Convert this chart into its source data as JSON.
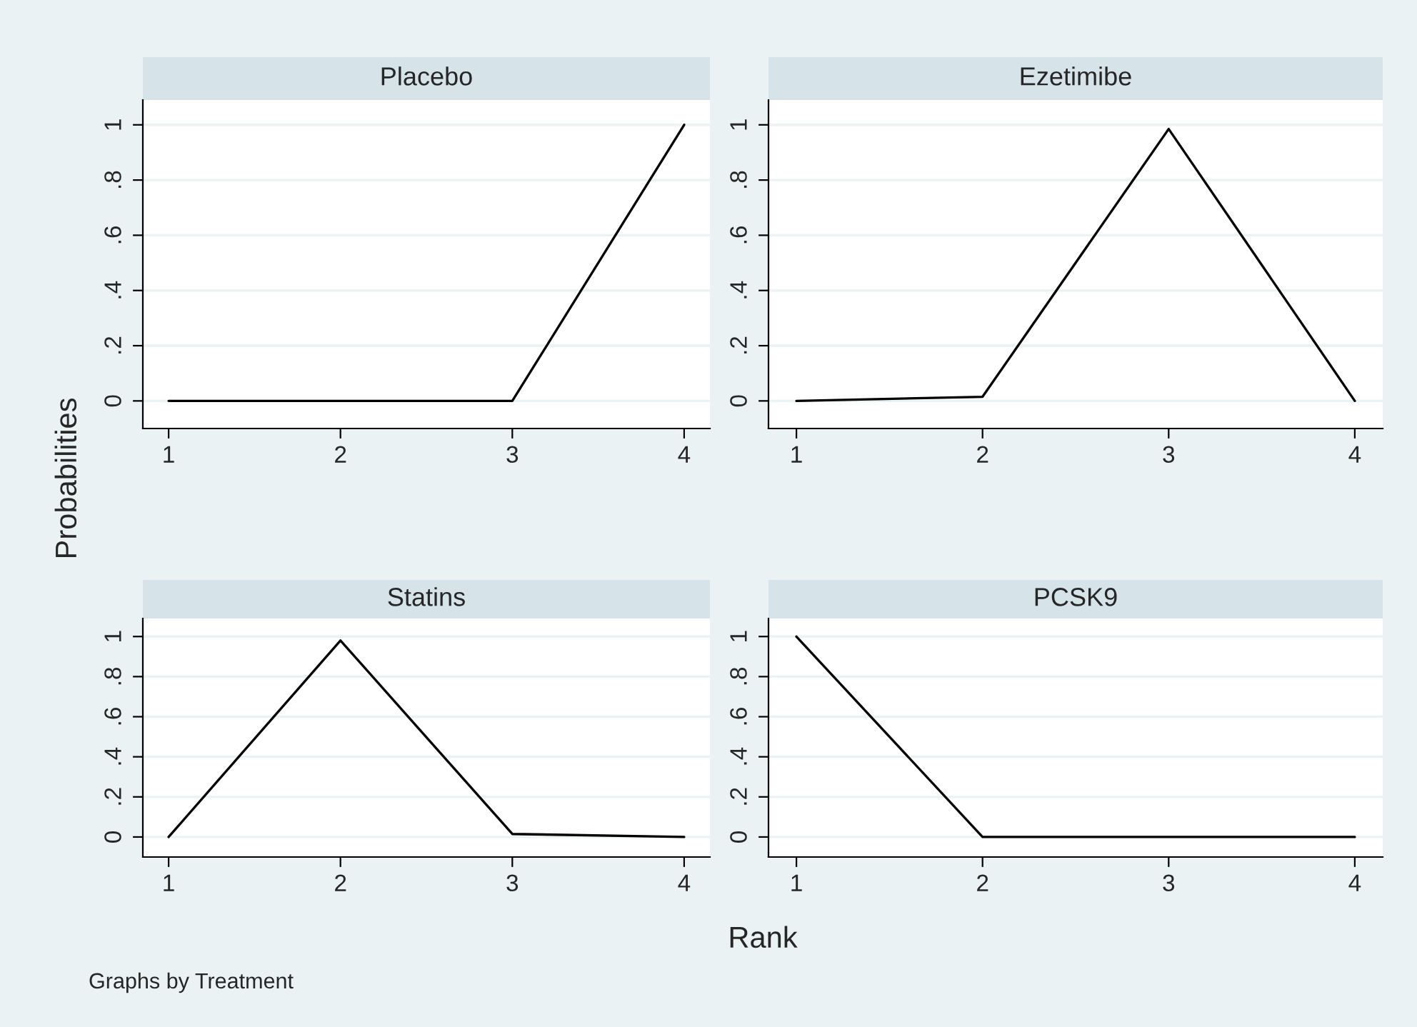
{
  "chart_data": [
    {
      "type": "line",
      "title": "Placebo",
      "x": [
        1,
        2,
        3,
        4
      ],
      "series": [
        {
          "color": "#000000",
          "values": [
            0,
            0,
            0,
            1
          ]
        }
      ],
      "xlim": [
        0.85,
        4.15
      ],
      "xticks": [
        1,
        2,
        3,
        4
      ],
      "ylim": [
        -0.1,
        1.09
      ],
      "yticks": [
        0,
        {
          "value": 0.2,
          "label": ".2"
        },
        {
          "value": 0.4,
          "label": ".4"
        },
        {
          "value": 0.6,
          "label": ".6"
        },
        {
          "value": 0.8,
          "label": ".8"
        },
        1
      ],
      "grid": "y",
      "ylabel": "Probabilities"
    },
    {
      "type": "line",
      "title": "Ezetimibe",
      "x": [
        1,
        2,
        3,
        4
      ],
      "series": [
        {
          "color": "#000000",
          "values": [
            0,
            0.015,
            0.985,
            0
          ]
        }
      ],
      "xlim": [
        0.85,
        4.15
      ],
      "xticks": [
        1,
        2,
        3,
        4
      ],
      "ylim": [
        -0.1,
        1.09
      ],
      "yticks": [
        0,
        {
          "value": 0.2,
          "label": ".2"
        },
        {
          "value": 0.4,
          "label": ".4"
        },
        {
          "value": 0.6,
          "label": ".6"
        },
        {
          "value": 0.8,
          "label": ".8"
        },
        1
      ],
      "grid": "y"
    },
    {
      "type": "line",
      "title": "Statins",
      "x": [
        1,
        2,
        3,
        4
      ],
      "series": [
        {
          "color": "#000000",
          "values": [
            0,
            0.98,
            0.015,
            0
          ]
        }
      ],
      "xlim": [
        0.85,
        4.15
      ],
      "xticks": [
        1,
        2,
        3,
        4
      ],
      "ylim": [
        -0.1,
        1.09
      ],
      "yticks": [
        0,
        {
          "value": 0.2,
          "label": ".2"
        },
        {
          "value": 0.4,
          "label": ".4"
        },
        {
          "value": 0.6,
          "label": ".6"
        },
        {
          "value": 0.8,
          "label": ".8"
        },
        1
      ],
      "grid": "y"
    },
    {
      "type": "line",
      "title": "PCSK9",
      "x": [
        1,
        2,
        3,
        4
      ],
      "series": [
        {
          "color": "#000000",
          "values": [
            1,
            0,
            0,
            0
          ]
        }
      ],
      "xlim": [
        0.85,
        4.15
      ],
      "xticks": [
        1,
        2,
        3,
        4
      ],
      "ylim": [
        -0.1,
        1.09
      ],
      "yticks": [
        0,
        {
          "value": 0.2,
          "label": ".2"
        },
        {
          "value": 0.4,
          "label": ".4"
        },
        {
          "value": 0.6,
          "label": ".6"
        },
        {
          "value": 0.8,
          "label": ".8"
        },
        1
      ],
      "grid": "y",
      "xlabel": "Rank",
      "annotations": [
        "Graphs by Treatment"
      ]
    }
  ]
}
